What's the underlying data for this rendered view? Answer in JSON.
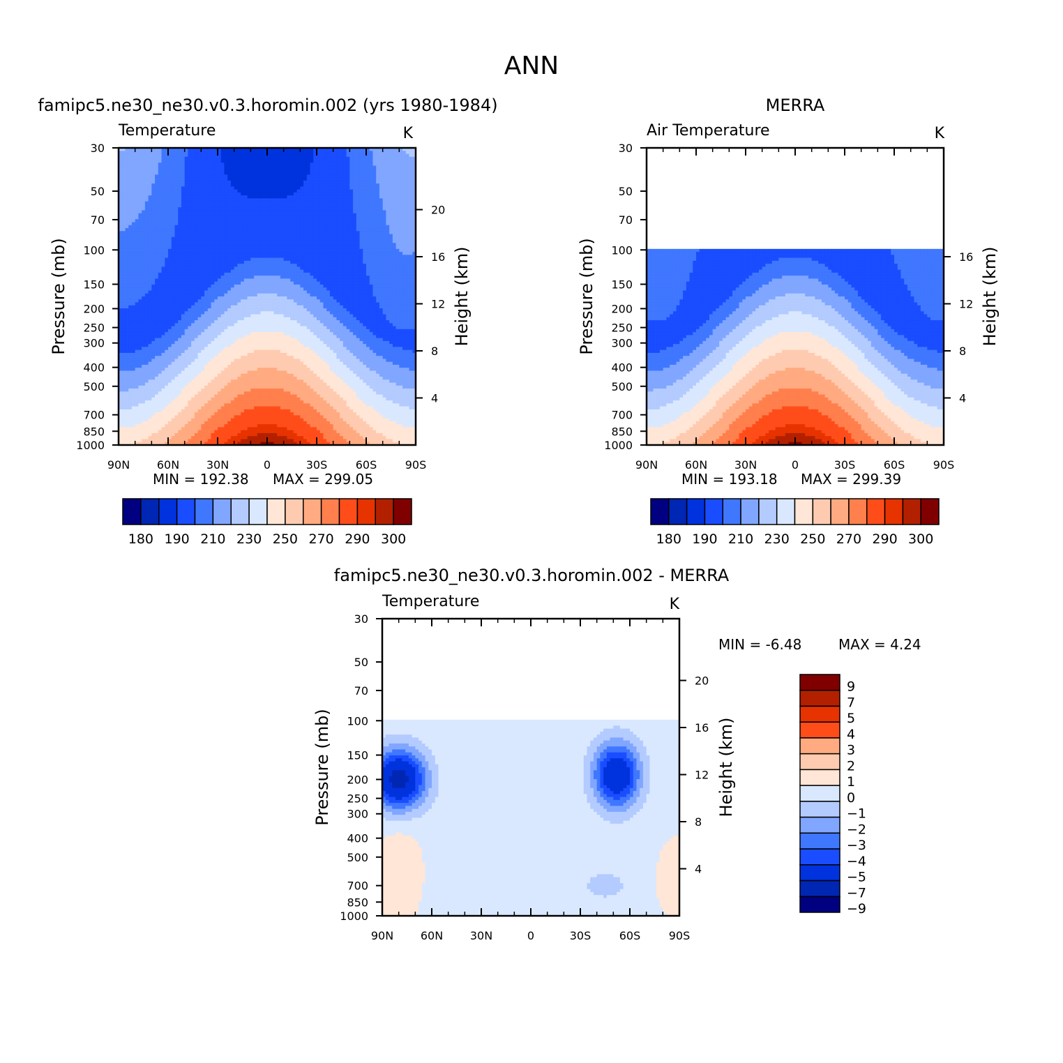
{
  "figure": {
    "title": "ANN"
  },
  "panels": [
    {
      "id": "model",
      "subtitle": "famipc5.ne30_ne30.v0.3.horomin.002 (yrs 1980-1984)",
      "variable": "Temperature",
      "units": "K",
      "ylabel": "Pressure (mb)",
      "ylabel_right": "Height (km)",
      "min_label": "MIN = 192.38",
      "max_label": "MAX = 299.05",
      "min": 192.38,
      "max": 299.05
    },
    {
      "id": "obs",
      "subtitle": "MERRA",
      "variable": "Air Temperature",
      "units": "K",
      "ylabel": "Pressure (mb)",
      "ylabel_right": "Height (km)",
      "min_label": "MIN = 193.18",
      "max_label": "MAX = 299.39",
      "min": 193.18,
      "max": 299.39
    },
    {
      "id": "diff",
      "subtitle": "famipc5.ne30_ne30.v0.3.horomin.002 - MERRA",
      "variable": "Temperature",
      "units": "K",
      "ylabel": "Pressure (mb)",
      "ylabel_right": "Height (km)",
      "min_label": "MIN = -6.48",
      "max_label": "MAX = 4.24",
      "min": -6.48,
      "max": 4.24
    }
  ],
  "chart_data": [
    {
      "type": "heatmap",
      "panel": "model",
      "x_ticks": [
        "90N",
        "60N",
        "30N",
        "0",
        "30S",
        "60S",
        "90S"
      ],
      "x_range": [
        90,
        -90
      ],
      "y_ticks": [
        30,
        50,
        70,
        100,
        150,
        200,
        250,
        300,
        400,
        500,
        700,
        850,
        1000
      ],
      "y_range_mb": [
        30,
        1000
      ],
      "y_scale": "log",
      "right_ticks_km": [
        20,
        16,
        12,
        8,
        4
      ],
      "colorbar_levels": [
        180,
        185,
        190,
        200,
        210,
        220,
        230,
        240,
        250,
        260,
        270,
        280,
        290,
        295,
        300
      ],
      "colorbar_labels": [
        "180",
        "190",
        "210",
        "230",
        "250",
        "270",
        "290",
        "300"
      ],
      "colors": [
        "#000080",
        "#0026b4",
        "#0033dd",
        "#1a4dff",
        "#4077ff",
        "#80a6ff",
        "#b3cbff",
        "#d9e8ff",
        "#ffe6d6",
        "#ffcbb0",
        "#ffaa80",
        "#ff7f4d",
        "#ff4d1a",
        "#e63300",
        "#b32000",
        "#800000"
      ]
    },
    {
      "type": "heatmap",
      "panel": "obs",
      "x_ticks": [
        "90N",
        "60N",
        "30N",
        "0",
        "30S",
        "60S",
        "90S"
      ],
      "x_range": [
        90,
        -90
      ],
      "y_ticks": [
        30,
        50,
        70,
        100,
        150,
        200,
        250,
        300,
        400,
        500,
        700,
        850,
        1000
      ],
      "y_range_mb": [
        30,
        1000
      ],
      "data_top_mb": 100,
      "y_scale": "log",
      "right_ticks_km": [
        16,
        12,
        8,
        4
      ],
      "colorbar_levels": [
        180,
        185,
        190,
        200,
        210,
        220,
        230,
        240,
        250,
        260,
        270,
        280,
        290,
        295,
        300
      ],
      "colorbar_labels": [
        "180",
        "190",
        "210",
        "230",
        "250",
        "270",
        "290",
        "300"
      ],
      "colors": [
        "#000080",
        "#0026b4",
        "#0033dd",
        "#1a4dff",
        "#4077ff",
        "#80a6ff",
        "#b3cbff",
        "#d9e8ff",
        "#ffe6d6",
        "#ffcbb0",
        "#ffaa80",
        "#ff7f4d",
        "#ff4d1a",
        "#e63300",
        "#b32000",
        "#800000"
      ]
    },
    {
      "type": "heatmap",
      "panel": "diff",
      "x_ticks": [
        "90N",
        "60N",
        "30N",
        "0",
        "30S",
        "60S",
        "90S"
      ],
      "x_range": [
        90,
        -90
      ],
      "y_ticks": [
        30,
        50,
        70,
        100,
        150,
        200,
        250,
        300,
        400,
        500,
        700,
        850,
        1000
      ],
      "y_range_mb": [
        30,
        1000
      ],
      "data_top_mb": 100,
      "y_scale": "log",
      "right_ticks_km": [
        20,
        16,
        12,
        8,
        4
      ],
      "colorbar_labels": [
        "9",
        "7",
        "5",
        "4",
        "3",
        "2",
        "1",
        "0",
        "-1",
        "-2",
        "-3",
        "-4",
        "-5",
        "-7",
        "-9"
      ],
      "colors": [
        "#800000",
        "#b32000",
        "#e63300",
        "#ff4d1a",
        "#ffaa80",
        "#ffcbb0",
        "#ffe6d6",
        "#d9e8ff",
        "#b3cbff",
        "#80a6ff",
        "#4077ff",
        "#1a4dff",
        "#0033dd",
        "#0026b4",
        "#000080"
      ]
    }
  ]
}
